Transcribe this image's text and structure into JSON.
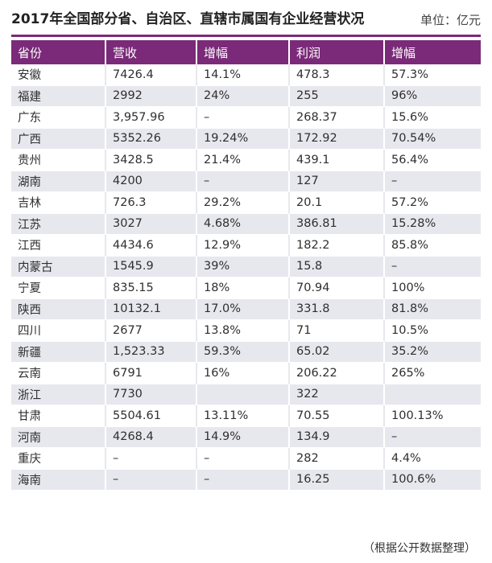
{
  "header": {
    "title": "2017年全国部分省、自治区、直辖市属国有企业经营状况",
    "unit": "单位：亿元"
  },
  "table": {
    "columns": [
      "省份",
      "营收",
      "增幅",
      "利润",
      "增幅"
    ],
    "rows": [
      [
        "安徽",
        "7426.4",
        "14.1%",
        "478.3",
        "57.3%"
      ],
      [
        "福建",
        "2992",
        "24%",
        "255",
        "96%"
      ],
      [
        "广东",
        "3,957.96",
        "–",
        "268.37",
        "15.6%"
      ],
      [
        "广西",
        "5352.26",
        "19.24%",
        "172.92",
        "70.54%"
      ],
      [
        "贵州",
        "3428.5",
        "21.4%",
        "439.1",
        "56.4%"
      ],
      [
        "湖南",
        "4200",
        "–",
        "127",
        "–"
      ],
      [
        "吉林",
        "726.3",
        "29.2%",
        "20.1",
        "57.2%"
      ],
      [
        "江苏",
        "3027",
        "4.68%",
        "386.81",
        "15.28%"
      ],
      [
        "江西",
        "4434.6",
        "12.9%",
        "182.2",
        "85.8%"
      ],
      [
        "内蒙古",
        "1545.9",
        "39%",
        "15.8",
        "–"
      ],
      [
        "宁夏",
        "835.15",
        "18%",
        "70.94",
        "100%"
      ],
      [
        "陕西",
        "10132.1",
        "17.0%",
        "331.8",
        "81.8%"
      ],
      [
        "四川",
        "2677",
        "13.8%",
        "71",
        "10.5%"
      ],
      [
        "新疆",
        "1,523.33",
        "59.3%",
        "65.02",
        "35.2%"
      ],
      [
        "云南",
        "6791",
        "16%",
        "206.22",
        "265%"
      ],
      [
        "浙江",
        "7730",
        "",
        "322",
        ""
      ],
      [
        "甘肃",
        "5504.61",
        "13.11%",
        "70.55",
        "100.13%"
      ],
      [
        "河南",
        "4268.4",
        "14.9%",
        "134.9",
        "–"
      ],
      [
        "重庆",
        "–",
        "–",
        "282",
        "4.4%"
      ],
      [
        "海南",
        "–",
        "–",
        "16.25",
        "100.6%"
      ]
    ]
  },
  "footer": {
    "source": "（根据公开数据整理）"
  },
  "colors": {
    "accent": "#7a2a78",
    "stripe": "#e7e7ee"
  }
}
